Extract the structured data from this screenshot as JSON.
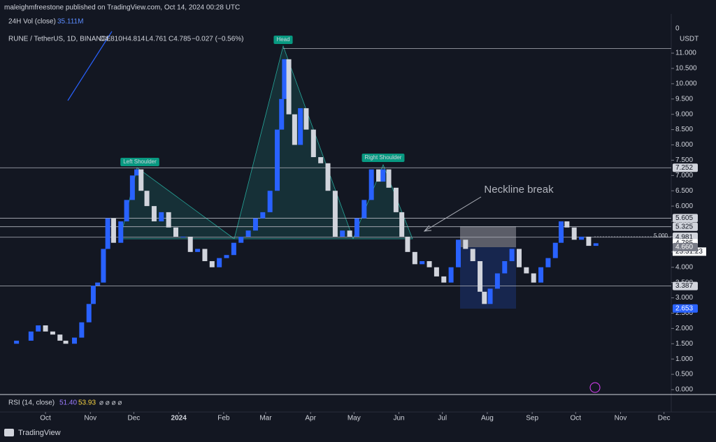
{
  "header": {
    "publisher": "maleighmfreestone published on TradingView.com, Oct 14, 2024 00:28 UTC"
  },
  "chart_data": {
    "type": "candlestick",
    "symbol": "RUNE / TetherUS, 1D, BINANCE",
    "ohlc": [
      "O4.810",
      "H4.814",
      "L4.761",
      "C4.785",
      "−0.027 (−0.56%)"
    ],
    "currency": "USDT",
    "up_color": "#2962ff",
    "down_color": "#d1d4dc",
    "x": [
      -28,
      -20,
      -10,
      -5,
      0,
      5,
      10,
      14,
      20,
      25,
      30,
      33,
      36,
      40,
      43,
      47,
      52,
      56,
      60,
      63,
      66,
      70,
      75,
      80,
      85,
      90,
      95,
      100,
      105,
      110,
      115,
      120,
      125,
      130,
      135,
      140,
      145,
      150,
      155,
      160,
      163,
      165,
      168,
      172,
      176,
      180,
      185,
      190,
      195,
      200,
      205,
      210,
      215,
      220,
      225,
      230,
      233,
      237,
      242,
      246,
      250,
      255,
      260,
      265,
      270,
      275,
      280,
      285,
      290,
      295,
      300,
      303,
      307,
      312,
      317,
      322,
      327,
      332,
      337,
      342,
      347,
      352,
      356,
      360,
      365,
      370,
      375,
      380
    ],
    "close": [
      1.5,
      1.6,
      1.9,
      2.1,
      1.9,
      1.8,
      1.6,
      1.5,
      1.7,
      2.2,
      2.8,
      3.4,
      3.5,
      4.6,
      5.6,
      4.8,
      5.5,
      6.2,
      7.0,
      7.2,
      6.5,
      6.0,
      5.5,
      5.8,
      5.3,
      5.0,
      5.0,
      4.5,
      4.6,
      4.2,
      4.0,
      4.3,
      4.4,
      4.8,
      5.0,
      5.2,
      5.6,
      5.8,
      6.5,
      8.5,
      9.5,
      10.8,
      9.0,
      8.0,
      9.2,
      8.5,
      7.6,
      7.4,
      6.5,
      5.0,
      5.2,
      5.0,
      5.6,
      6.2,
      7.2,
      6.8,
      7.2,
      6.6,
      5.8,
      5.0,
      4.5,
      4.1,
      4.2,
      4.0,
      3.7,
      3.5,
      4.0,
      4.9,
      4.6,
      4.2,
      3.2,
      2.8,
      3.3,
      3.8,
      4.2,
      4.6,
      4.0,
      3.8,
      3.5,
      4.0,
      4.3,
      4.8,
      5.5,
      5.3,
      4.9,
      5.0,
      4.7,
      4.785
    ],
    "xlim": [
      -31.4,
      432
    ],
    "xticks": [
      {
        "value": 0,
        "label": "Oct"
      },
      {
        "value": 31,
        "label": "Nov"
      },
      {
        "value": 61,
        "label": "Dec"
      },
      {
        "value": 92,
        "label": "2024"
      },
      {
        "value": 123,
        "label": "Feb"
      },
      {
        "value": 152,
        "label": "Mar"
      },
      {
        "value": 183,
        "label": "Apr"
      },
      {
        "value": 213,
        "label": "May"
      },
      {
        "value": 244,
        "label": "Jun"
      },
      {
        "value": 274,
        "label": "Jul"
      },
      {
        "value": 305,
        "label": "Aug"
      },
      {
        "value": 336,
        "label": "Sep"
      },
      {
        "value": 366,
        "label": "Oct"
      },
      {
        "value": 397,
        "label": "Nov"
      },
      {
        "value": 427,
        "label": "Dec"
      }
    ],
    "ylim": [
      -0.16,
      12.28
    ],
    "yticks": [
      {
        "value": 0,
        "label": "0.000"
      },
      {
        "value": 0.5,
        "label": "0.500"
      },
      {
        "value": 1,
        "label": "1.000"
      },
      {
        "value": 1.5,
        "label": "1.500"
      },
      {
        "value": 2,
        "label": "2.000"
      },
      {
        "value": 2.5,
        "label": "2.500"
      },
      {
        "value": 3,
        "label": "3.000"
      },
      {
        "value": 3.5,
        "label": "3.500"
      },
      {
        "value": 4,
        "label": "4.000"
      },
      {
        "value": 4.5,
        "label": "4.500"
      },
      {
        "value": 5,
        "label": "5.000"
      },
      {
        "value": 5.5,
        "label": "5.500"
      },
      {
        "value": 6,
        "label": "6.000"
      },
      {
        "value": 6.5,
        "label": "6.500"
      },
      {
        "value": 7,
        "label": "7.000"
      },
      {
        "value": 7.5,
        "label": "7.500"
      },
      {
        "value": 8,
        "label": "8.000"
      },
      {
        "value": 8.5,
        "label": "8.500"
      },
      {
        "value": 9,
        "label": "9.000"
      },
      {
        "value": 9.5,
        "label": "9.500"
      },
      {
        "value": 10,
        "label": "10.000"
      },
      {
        "value": 10.5,
        "label": "10.500"
      },
      {
        "value": 11,
        "label": "11.000"
      }
    ],
    "levels": [
      11.15,
      7.252,
      5.605,
      5.325,
      4.981,
      3.387
    ],
    "price_labels": [
      {
        "value": 7.252,
        "label": "7.252",
        "color": "#d1d4dc"
      },
      {
        "value": 5.605,
        "label": "5.605",
        "color": "#d1d4dc"
      },
      {
        "value": 5.325,
        "label": "5.325",
        "color": "#d1d4dc"
      },
      {
        "value": 5.0,
        "label": "5.000",
        "color": "#d1d4dc"
      },
      {
        "value": 4.981,
        "label": "4.981",
        "color": "#d1d4dc"
      },
      {
        "value": 4.785,
        "label": "4.785",
        "color": "#ffffff"
      },
      {
        "value": 4.66,
        "label": "4.660",
        "color": "#787b86"
      },
      {
        "value": 3.387,
        "label": "3.387",
        "color": "#d1d4dc"
      },
      {
        "value": 2.653,
        "label": "2.653",
        "color": "#2962ff"
      }
    ],
    "countdown": "23:31:23",
    "level_tag": {
      "value": 5.0,
      "label": "5.000"
    },
    "annotations": {
      "head": "Head",
      "left": "Left Shoulder",
      "right": "Right Shoulder",
      "neckline": "Neckline break"
    },
    "volume": {
      "title": "24H Vol (close)",
      "value": {
        "value": 35111000,
        "label": "35.111M"
      },
      "axis": 0
    },
    "rsi": {
      "title": "RSI (14, close)",
      "values": [
        {
          "value": 51.4,
          "label": "51.40"
        },
        {
          "value": 53.93,
          "label": "53.93"
        }
      ],
      "flags": "⌀ ⌀ ⌀ ⌀"
    }
  },
  "footer": "TradingView"
}
